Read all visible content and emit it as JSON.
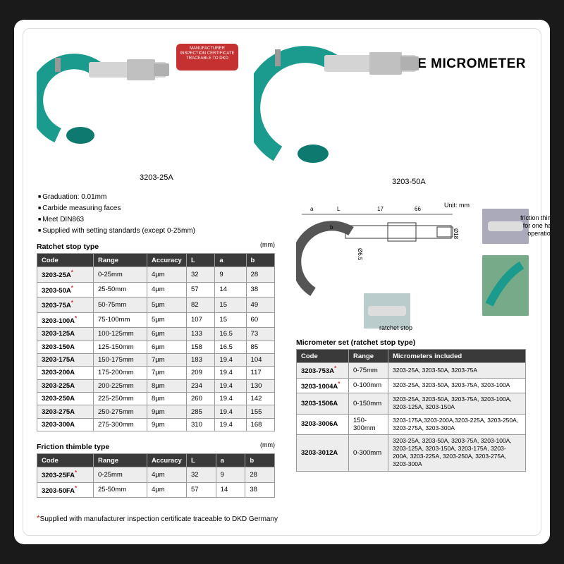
{
  "title": "OUTSIDE MICROMETER",
  "badge": {
    "line1": "MANUFACTURER",
    "line2": "INSPECTION CERTIFICATE",
    "line3": "TRACEABLE TO DKD"
  },
  "product_labels": {
    "left": "3203-25A",
    "right": "3203-50A"
  },
  "bullets": [
    "Graduation: 0.01mm",
    "Carbide measuring faces",
    "Meet DIN863",
    "Supplied with setting standards (except 0-25mm)"
  ],
  "ratchet": {
    "title": "Ratchet stop type",
    "unit": "(mm)",
    "headers": [
      "Code",
      "Range",
      "Accuracy",
      "L",
      "a",
      "b"
    ],
    "rows": [
      {
        "code": "3203-25A",
        "star": true,
        "range": "0-25mm",
        "acc": "4µm",
        "L": "32",
        "a": "9",
        "b": "28",
        "alt": true
      },
      {
        "code": "3203-50A",
        "star": true,
        "range": "25-50mm",
        "acc": "4µm",
        "L": "57",
        "a": "14",
        "b": "38",
        "alt": false
      },
      {
        "code": "3203-75A",
        "star": true,
        "range": "50-75mm",
        "acc": "5µm",
        "L": "82",
        "a": "15",
        "b": "49",
        "alt": true
      },
      {
        "code": "3203-100A",
        "star": true,
        "range": "75-100mm",
        "acc": "5µm",
        "L": "107",
        "a": "15",
        "b": "60",
        "alt": false
      },
      {
        "code": "3203-125A",
        "star": false,
        "range": "100-125mm",
        "acc": "6µm",
        "L": "133",
        "a": "16.5",
        "b": "73",
        "alt": true
      },
      {
        "code": "3203-150A",
        "star": false,
        "range": "125-150mm",
        "acc": "6µm",
        "L": "158",
        "a": "16.5",
        "b": "85",
        "alt": false
      },
      {
        "code": "3203-175A",
        "star": false,
        "range": "150-175mm",
        "acc": "7µm",
        "L": "183",
        "a": "19.4",
        "b": "104",
        "alt": true
      },
      {
        "code": "3203-200A",
        "star": false,
        "range": "175-200mm",
        "acc": "7µm",
        "L": "209",
        "a": "19.4",
        "b": "117",
        "alt": false
      },
      {
        "code": "3203-225A",
        "star": false,
        "range": "200-225mm",
        "acc": "8µm",
        "L": "234",
        "a": "19.4",
        "b": "130",
        "alt": true
      },
      {
        "code": "3203-250A",
        "star": false,
        "range": "225-250mm",
        "acc": "8µm",
        "L": "260",
        "a": "19.4",
        "b": "142",
        "alt": false
      },
      {
        "code": "3203-275A",
        "star": false,
        "range": "250-275mm",
        "acc": "9µm",
        "L": "285",
        "a": "19.4",
        "b": "155",
        "alt": true
      },
      {
        "code": "3203-300A",
        "star": false,
        "range": "275-300mm",
        "acc": "9µm",
        "L": "310",
        "a": "19.4",
        "b": "168",
        "alt": false
      }
    ]
  },
  "friction": {
    "title": "Friction thimble type",
    "unit": "(mm)",
    "headers": [
      "Code",
      "Range",
      "Accuracy",
      "L",
      "a",
      "b"
    ],
    "rows": [
      {
        "code": "3203-25FA",
        "star": true,
        "range": "0-25mm",
        "acc": "4µm",
        "L": "32",
        "a": "9",
        "b": "28",
        "alt": true
      },
      {
        "code": "3203-50FA",
        "star": true,
        "range": "25-50mm",
        "acc": "4µm",
        "L": "57",
        "a": "14",
        "b": "38",
        "alt": false
      }
    ]
  },
  "sets": {
    "title": "Micrometer set (ratchet stop type)",
    "headers": [
      "Code",
      "Range",
      "Micrometers included"
    ],
    "rows": [
      {
        "code": "3203-753A",
        "star": true,
        "range": "0-75mm",
        "inc": "3203-25A, 3203-50A, 3203-75A",
        "alt": true
      },
      {
        "code": "3203-1004A",
        "star": true,
        "range": "0-100mm",
        "inc": "3203-25A, 3203-50A, 3203-75A, 3203-100A",
        "alt": false
      },
      {
        "code": "3203-1506A",
        "star": false,
        "range": "0-150mm",
        "inc": "3203-25A, 3203-50A, 3203-75A, 3203-100A, 3203-125A, 3203-150A",
        "alt": true
      },
      {
        "code": "3203-3006A",
        "star": false,
        "range": "150-300mm",
        "inc": "3203-175A,3203-200A,3203-225A, 3203-250A, 3203-275A, 3203-300A",
        "alt": false
      },
      {
        "code": "3203-3012A",
        "star": false,
        "range": "0-300mm",
        "inc": "3203-25A, 3203-50A, 3203-75A, 3203-100A, 3203-125A, 3203-150A, 3203-175A, 3203-200A, 3203-225A, 3203-250A, 3203-275A, 3203-300A",
        "alt": true
      }
    ]
  },
  "footnote": "Supplied with manufacturer inspection certificate traceable to DKD Germany",
  "diagram": {
    "unit": "Unit: mm",
    "dims": {
      "L": "L",
      "a": "a",
      "b": "b",
      "d1": "17",
      "d2": "66",
      "dia1": "Ø6.5",
      "dia2": "Ø18"
    },
    "annot_ratchet": "ratchet stop",
    "annot_friction": "friction thimble\nfor one hand operation"
  },
  "colors": {
    "frame_green": "#1a9b8e",
    "metal": "#c8c8c8",
    "header": "#3a3a3a"
  }
}
